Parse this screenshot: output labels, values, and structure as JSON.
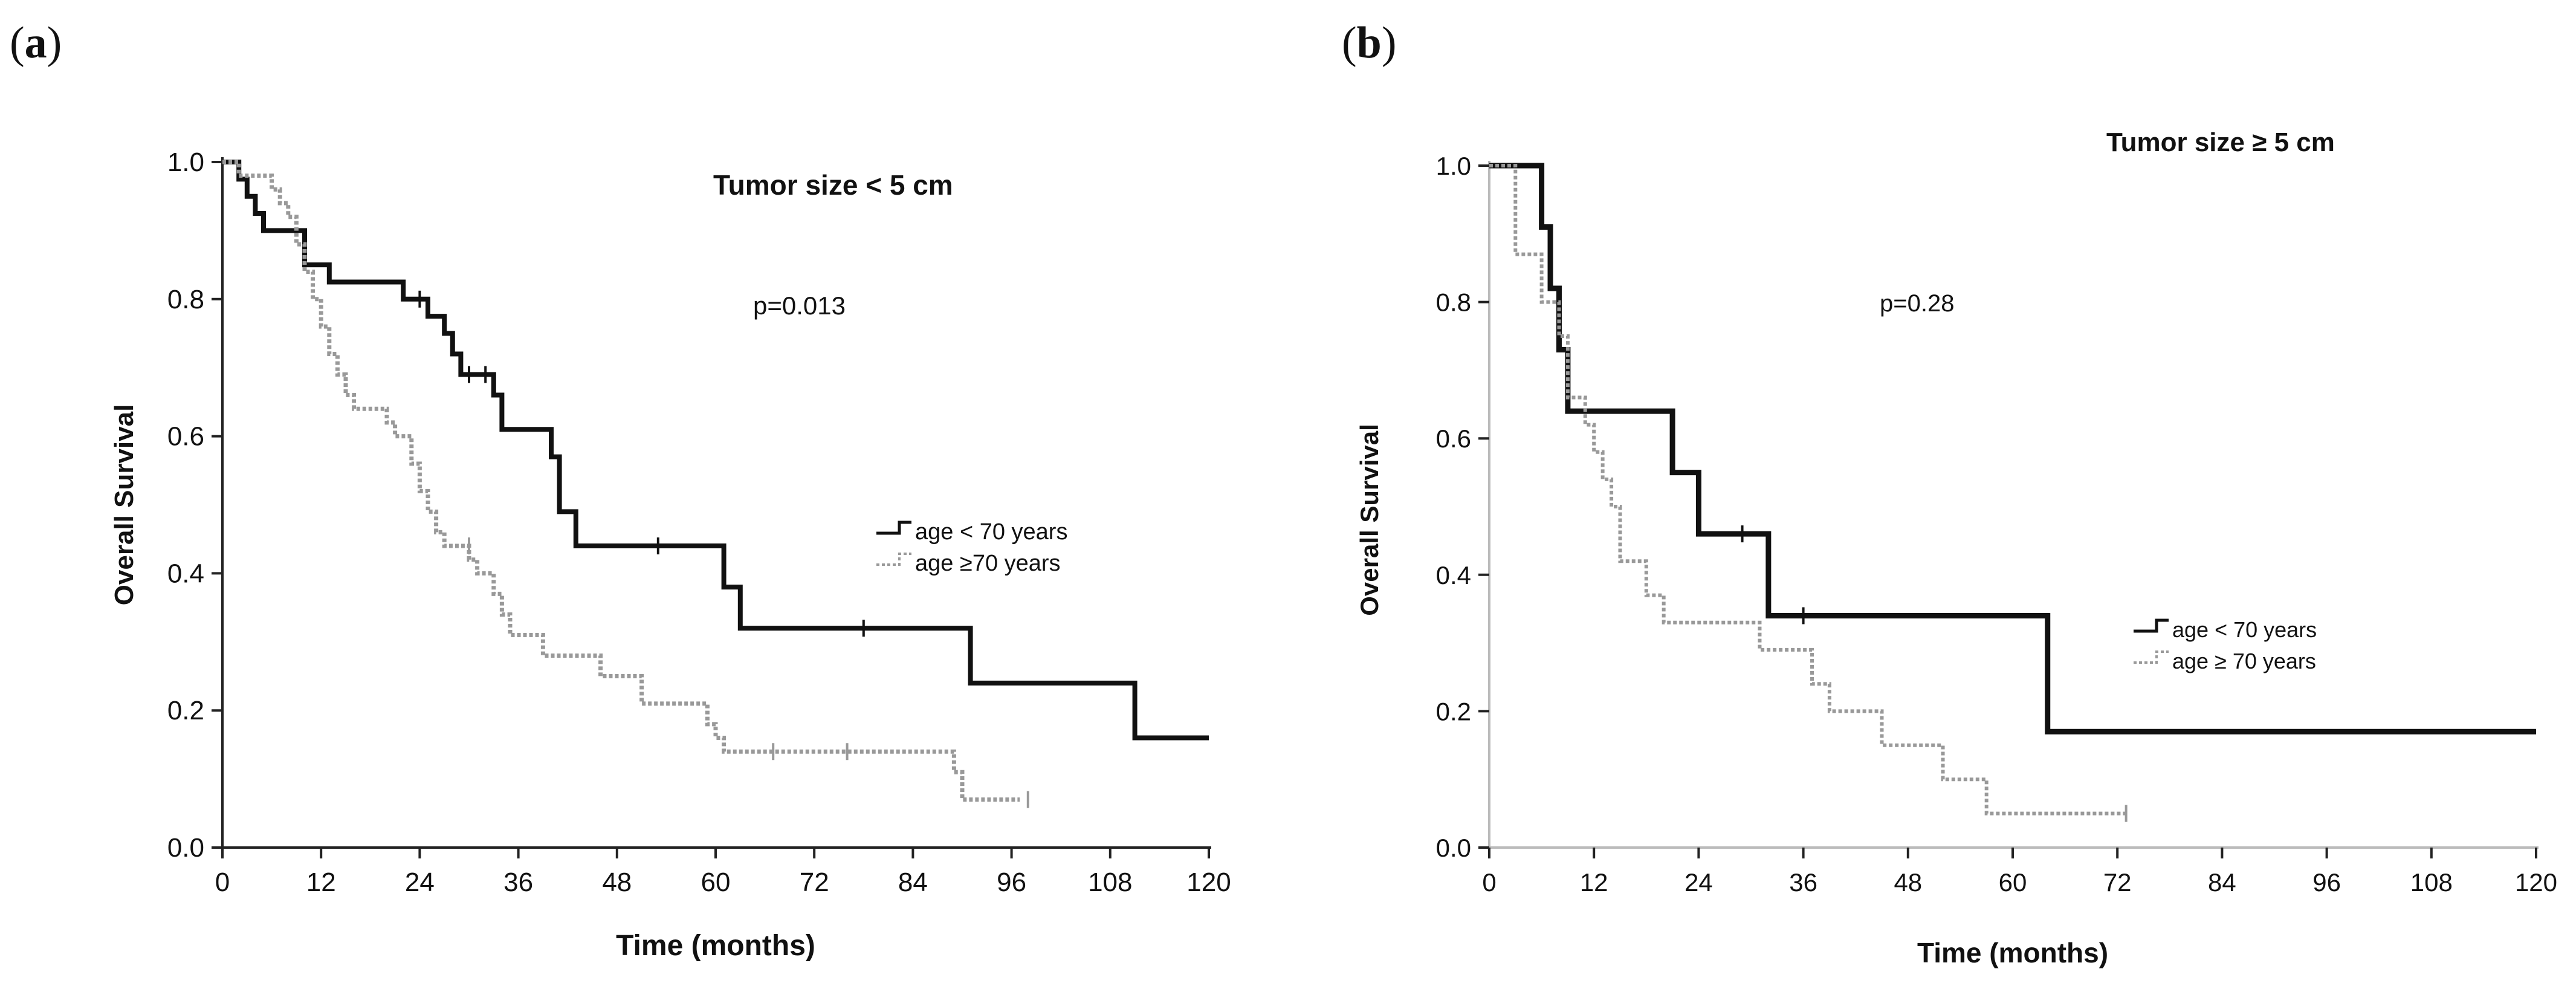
{
  "panels": {
    "a": {
      "label": "(",
      "letter": "a",
      "close": ")"
    },
    "b": {
      "label": "(",
      "letter": "b",
      "close": ")"
    }
  },
  "chart_data": [
    {
      "type": "line",
      "id": "a",
      "panel_label": "(a)",
      "title": "Tumor size < 5 cm",
      "annotation": "p=0.013",
      "xlabel": "Time (months)",
      "ylabel": "Overall Survival",
      "xlim": [
        0,
        120
      ],
      "ylim": [
        0,
        1.0
      ],
      "xticks": [
        0,
        12,
        24,
        36,
        48,
        60,
        72,
        84,
        96,
        108,
        120
      ],
      "yticks": [
        "0.0",
        "0.2",
        "0.4",
        "0.6",
        "0.8",
        "1.0"
      ],
      "legend_position": "right-middle",
      "series": [
        {
          "name": "age < 70 years",
          "style": "solid",
          "color": "#111111",
          "steps": [
            [
              0,
              1.0
            ],
            [
              2,
              0.975
            ],
            [
              3,
              0.95
            ],
            [
              4,
              0.925
            ],
            [
              5,
              0.9
            ],
            [
              8,
              0.9
            ],
            [
              10,
              0.85
            ],
            [
              13,
              0.825
            ],
            [
              22,
              0.8
            ],
            [
              25,
              0.775
            ],
            [
              27,
              0.75
            ],
            [
              28,
              0.72
            ],
            [
              29,
              0.69
            ],
            [
              33,
              0.66
            ],
            [
              34,
              0.61
            ],
            [
              40,
              0.57
            ],
            [
              41,
              0.49
            ],
            [
              43,
              0.44
            ],
            [
              61,
              0.38
            ],
            [
              63,
              0.32
            ],
            [
              91,
              0.24
            ],
            [
              111,
              0.16
            ],
            [
              120,
              0.16
            ]
          ],
          "censored": [
            [
              24,
              0.8
            ],
            [
              28,
              0.74
            ],
            [
              30,
              0.69
            ],
            [
              32,
              0.69
            ],
            [
              53,
              0.44
            ],
            [
              78,
              0.32
            ]
          ]
        },
        {
          "name": "age ≥70 years",
          "style": "dotted",
          "color": "#999999",
          "steps": [
            [
              0,
              1.0
            ],
            [
              2,
              0.98
            ],
            [
              6,
              0.96
            ],
            [
              7,
              0.94
            ],
            [
              8,
              0.92
            ],
            [
              9,
              0.88
            ],
            [
              10,
              0.84
            ],
            [
              11,
              0.8
            ],
            [
              12,
              0.76
            ],
            [
              13,
              0.72
            ],
            [
              14,
              0.69
            ],
            [
              15,
              0.66
            ],
            [
              16,
              0.64
            ],
            [
              20,
              0.62
            ],
            [
              21,
              0.6
            ],
            [
              23,
              0.56
            ],
            [
              24,
              0.52
            ],
            [
              25,
              0.49
            ],
            [
              26,
              0.46
            ],
            [
              27,
              0.44
            ],
            [
              30,
              0.42
            ],
            [
              31,
              0.4
            ],
            [
              33,
              0.37
            ],
            [
              34,
              0.34
            ],
            [
              35,
              0.31
            ],
            [
              39,
              0.28
            ],
            [
              46,
              0.25
            ],
            [
              51,
              0.21
            ],
            [
              59,
              0.18
            ],
            [
              60,
              0.16
            ],
            [
              61,
              0.14
            ],
            [
              89,
              0.11
            ],
            [
              90,
              0.07
            ],
            [
              97,
              0.07
            ]
          ],
          "censored": [
            [
              30,
              0.44
            ],
            [
              67,
              0.14
            ],
            [
              76,
              0.14
            ],
            [
              98,
              0.07
            ]
          ]
        }
      ]
    },
    {
      "type": "line",
      "id": "b",
      "panel_label": "(b)",
      "title": "Tumor size ≥ 5 cm",
      "annotation": "p=0.28",
      "xlabel": "Time (months)",
      "ylabel": "Overall Survival",
      "xlim": [
        0,
        120
      ],
      "ylim": [
        0,
        1.0
      ],
      "xticks": [
        0,
        12,
        24,
        36,
        48,
        60,
        72,
        84,
        96,
        108,
        120
      ],
      "yticks": [
        "0.0",
        "0.2",
        "0.4",
        "0.6",
        "0.8",
        "1.0"
      ],
      "legend_position": "right-middle",
      "series": [
        {
          "name": "age < 70 years",
          "style": "solid",
          "color": "#111111",
          "steps": [
            [
              0,
              1.0
            ],
            [
              6,
              0.91
            ],
            [
              7,
              0.82
            ],
            [
              8,
              0.73
            ],
            [
              9,
              0.64
            ],
            [
              21,
              0.55
            ],
            [
              24,
              0.46
            ],
            [
              32,
              0.34
            ],
            [
              64,
              0.17
            ],
            [
              120,
              0.17
            ]
          ],
          "censored": [
            [
              29,
              0.46
            ],
            [
              36,
              0.34
            ]
          ]
        },
        {
          "name": "age ≥ 70 years",
          "style": "dotted",
          "color": "#999999",
          "steps": [
            [
              0,
              1.0
            ],
            [
              3,
              0.87
            ],
            [
              6,
              0.8
            ],
            [
              8,
              0.75
            ],
            [
              9,
              0.66
            ],
            [
              11,
              0.62
            ],
            [
              12,
              0.58
            ],
            [
              13,
              0.54
            ],
            [
              14,
              0.5
            ],
            [
              15,
              0.42
            ],
            [
              17,
              0.42
            ],
            [
              18,
              0.37
            ],
            [
              20,
              0.33
            ],
            [
              31,
              0.29
            ],
            [
              37,
              0.24
            ],
            [
              39,
              0.2
            ],
            [
              45,
              0.15
            ],
            [
              52,
              0.1
            ],
            [
              57,
              0.05
            ],
            [
              73,
              0.05
            ]
          ],
          "censored": [
            [
              73,
              0.05
            ]
          ]
        }
      ]
    }
  ]
}
